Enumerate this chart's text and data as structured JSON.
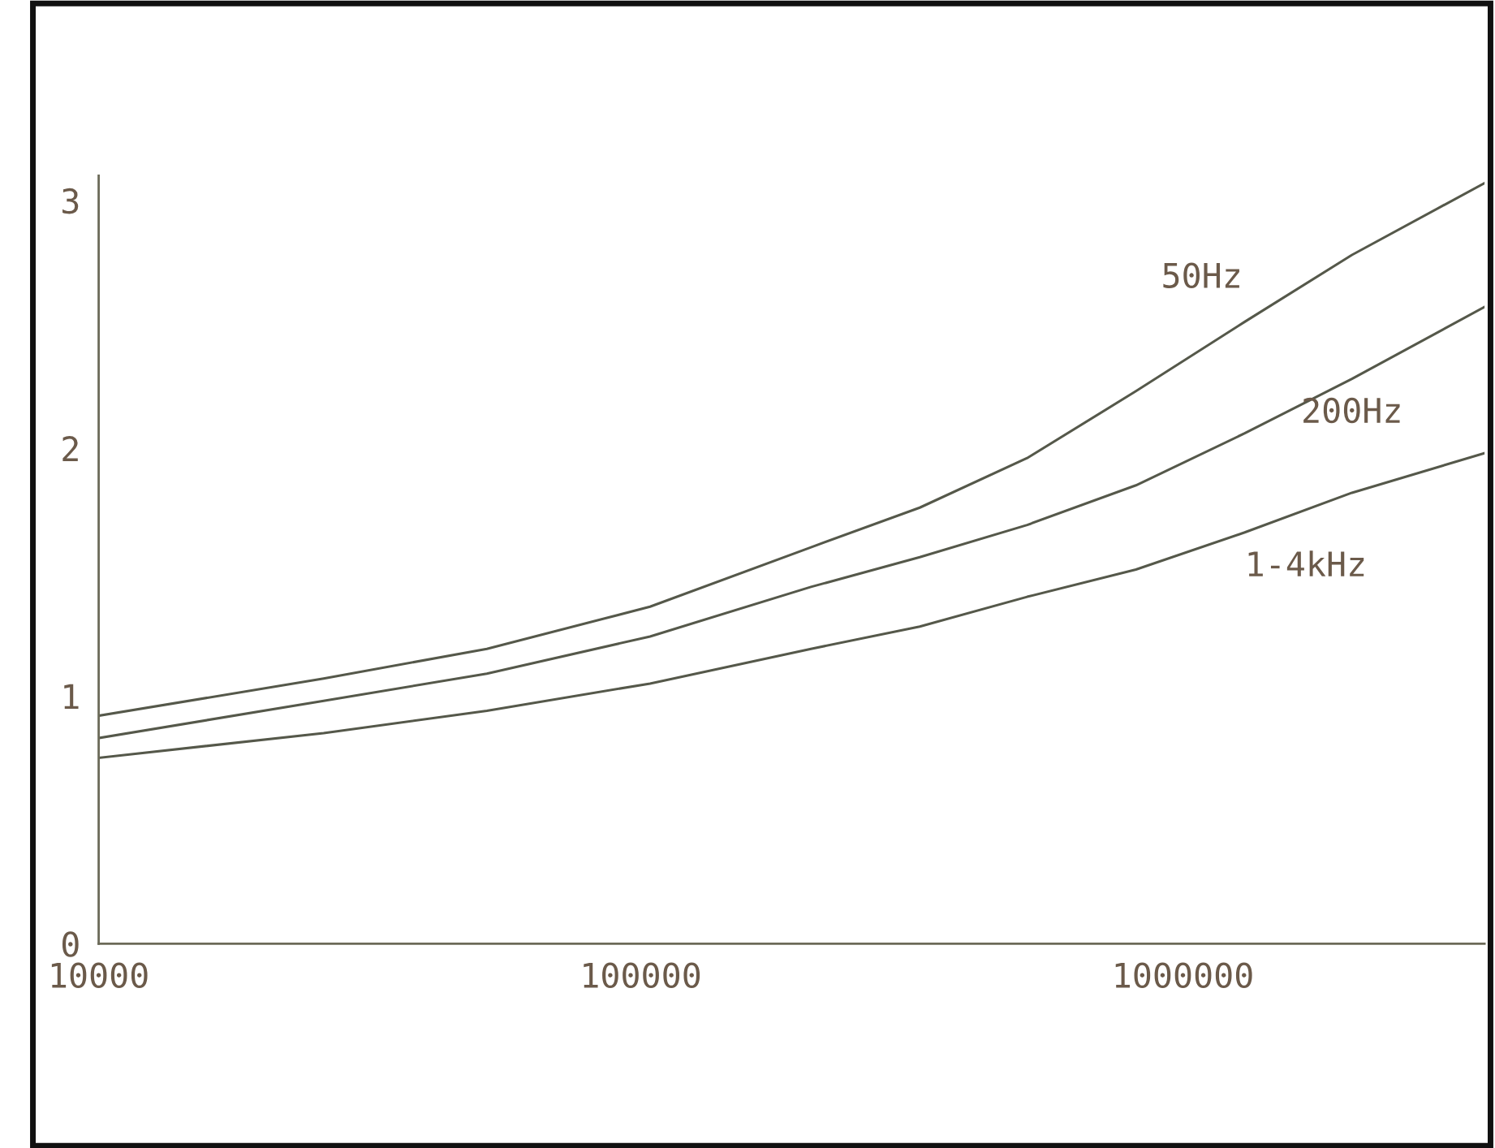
{
  "chart_data": {
    "type": "line",
    "log": "x",
    "xlim": [
      10000,
      3600000
    ],
    "ylim": [
      0,
      3.1
    ],
    "xticks": [
      10000,
      100000,
      1000000
    ],
    "yticks": [
      0,
      1,
      2,
      3
    ],
    "grid": false,
    "legend": false,
    "x": [
      10000,
      26000,
      52000,
      104000,
      206000,
      327000,
      516000,
      819000,
      1300000,
      2050000,
      3600000
    ],
    "series": [
      {
        "name": "50Hz",
        "color": "#55584a",
        "values": [
          0.92,
          1.07,
          1.19,
          1.36,
          1.6,
          1.76,
          1.96,
          2.23,
          2.51,
          2.78,
          3.07
        ]
      },
      {
        "name": "200Hz",
        "color": "#55584a",
        "values": [
          0.83,
          0.98,
          1.09,
          1.24,
          1.44,
          1.56,
          1.69,
          1.85,
          2.06,
          2.28,
          2.57
        ]
      },
      {
        "name": "1-4kHz",
        "color": "#55584a",
        "values": [
          0.75,
          0.85,
          0.94,
          1.05,
          1.19,
          1.28,
          1.4,
          1.51,
          1.66,
          1.82,
          1.98
        ]
      }
    ]
  }
}
